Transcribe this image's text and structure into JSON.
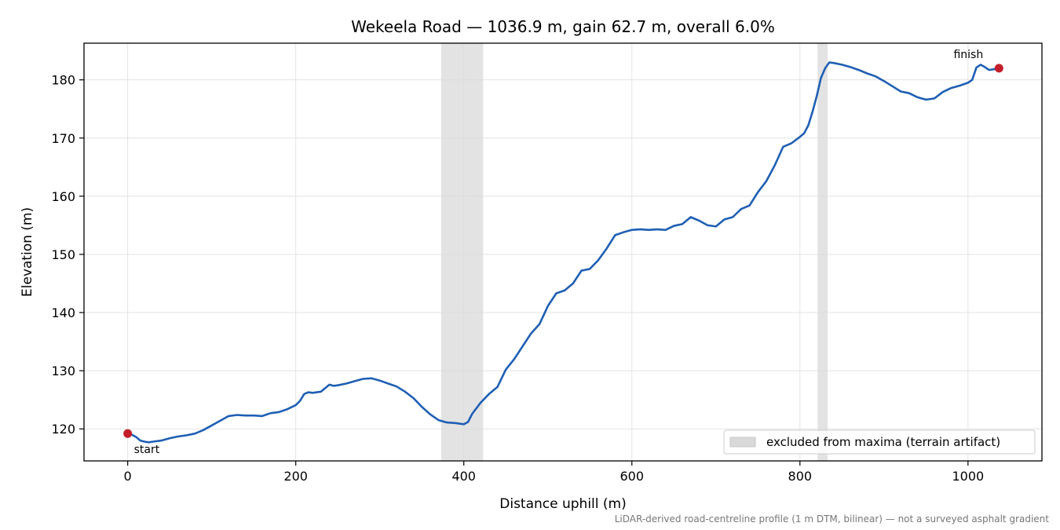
{
  "chart_data": {
    "type": "line",
    "title": "Wekeela Road — 1036.9 m, gain 62.7 m, overall 6.0%",
    "xlabel": "Distance uphill (m)",
    "ylabel": "Elevation (m)",
    "xlim": [
      -52,
      1088
    ],
    "ylim": [
      114.5,
      186.3
    ],
    "xticks": [
      0,
      200,
      400,
      600,
      800,
      1000
    ],
    "yticks": [
      120,
      130,
      140,
      150,
      160,
      170,
      180
    ],
    "grid": true,
    "series": [
      {
        "color": "#1f5fb4",
        "x": [
          0,
          5,
          10,
          15,
          20,
          25,
          30,
          40,
          50,
          60,
          70,
          80,
          90,
          100,
          110,
          120,
          130,
          140,
          150,
          160,
          170,
          180,
          190,
          200,
          205,
          210,
          215,
          220,
          230,
          240,
          245,
          250,
          260,
          270,
          280,
          290,
          300,
          310,
          320,
          330,
          340,
          350,
          360,
          370,
          380,
          390,
          400,
          405,
          410,
          420,
          430,
          440,
          450,
          460,
          470,
          480,
          490,
          500,
          510,
          520,
          530,
          540,
          550,
          560,
          570,
          580,
          590,
          600,
          610,
          620,
          630,
          640,
          650,
          660,
          670,
          680,
          690,
          700,
          710,
          720,
          730,
          740,
          750,
          760,
          770,
          780,
          790,
          800,
          805,
          810,
          815,
          820,
          825,
          830,
          835,
          840,
          850,
          860,
          870,
          880,
          890,
          900,
          910,
          920,
          930,
          940,
          950,
          960,
          970,
          980,
          990,
          1000,
          1005,
          1010,
          1015,
          1020,
          1025,
          1030,
          1036.9
        ],
        "y": [
          119.2,
          119.0,
          118.6,
          118.0,
          117.8,
          117.7,
          117.8,
          118.0,
          118.4,
          118.7,
          118.9,
          119.2,
          119.8,
          120.6,
          121.4,
          122.2,
          122.4,
          122.3,
          122.3,
          122.2,
          122.7,
          122.9,
          123.4,
          124.1,
          124.8,
          126.0,
          126.3,
          126.2,
          126.4,
          127.6,
          127.4,
          127.5,
          127.8,
          128.2,
          128.6,
          128.7,
          128.3,
          127.8,
          127.3,
          126.4,
          125.3,
          123.8,
          122.5,
          121.5,
          121.1,
          121.0,
          120.8,
          121.2,
          122.6,
          124.5,
          126.0,
          127.2,
          130.2,
          132.0,
          134.2,
          136.4,
          138.0,
          141.1,
          143.3,
          143.8,
          145.0,
          147.2,
          147.5,
          149.0,
          151.0,
          153.3,
          153.8,
          154.2,
          154.3,
          154.2,
          154.3,
          154.2,
          154.9,
          155.2,
          156.4,
          155.8,
          155.0,
          154.8,
          156.0,
          156.4,
          157.8,
          158.4,
          160.7,
          162.6,
          165.3,
          168.5,
          169.1,
          170.2,
          170.8,
          172.2,
          174.5,
          177.2,
          180.3,
          182.0,
          183.0,
          182.9,
          182.6,
          182.2,
          181.7,
          181.1,
          180.6,
          179.8,
          178.9,
          178.0,
          177.7,
          177.0,
          176.6,
          176.8,
          177.9,
          178.6,
          179.0,
          179.5,
          180.0,
          182.1,
          182.6,
          182.2,
          181.7,
          181.8,
          182.0
        ]
      }
    ],
    "excluded_ranges": [
      [
        373,
        423
      ],
      [
        821,
        833
      ]
    ],
    "start_marker": {
      "x": 0,
      "y": 119.2,
      "color": "#c41e2a"
    },
    "finish_marker": {
      "x": 1036.9,
      "y": 182.0,
      "color": "#c41e2a"
    },
    "legend_placement": "bottom-right",
    "legend_entries": [
      "excluded from maxima (terrain artifact)"
    ],
    "annotations": {
      "start": "start",
      "finish": "finish"
    },
    "footnote": "LiDAR-derived road-centreline profile (1 m DTM, bilinear) — not a surveyed asphalt gradient",
    "colors": {
      "line": "#1f5fb4",
      "marker": "#c41e2a",
      "shade": "#d9d9d9",
      "grid": "#e3e3e3"
    }
  }
}
